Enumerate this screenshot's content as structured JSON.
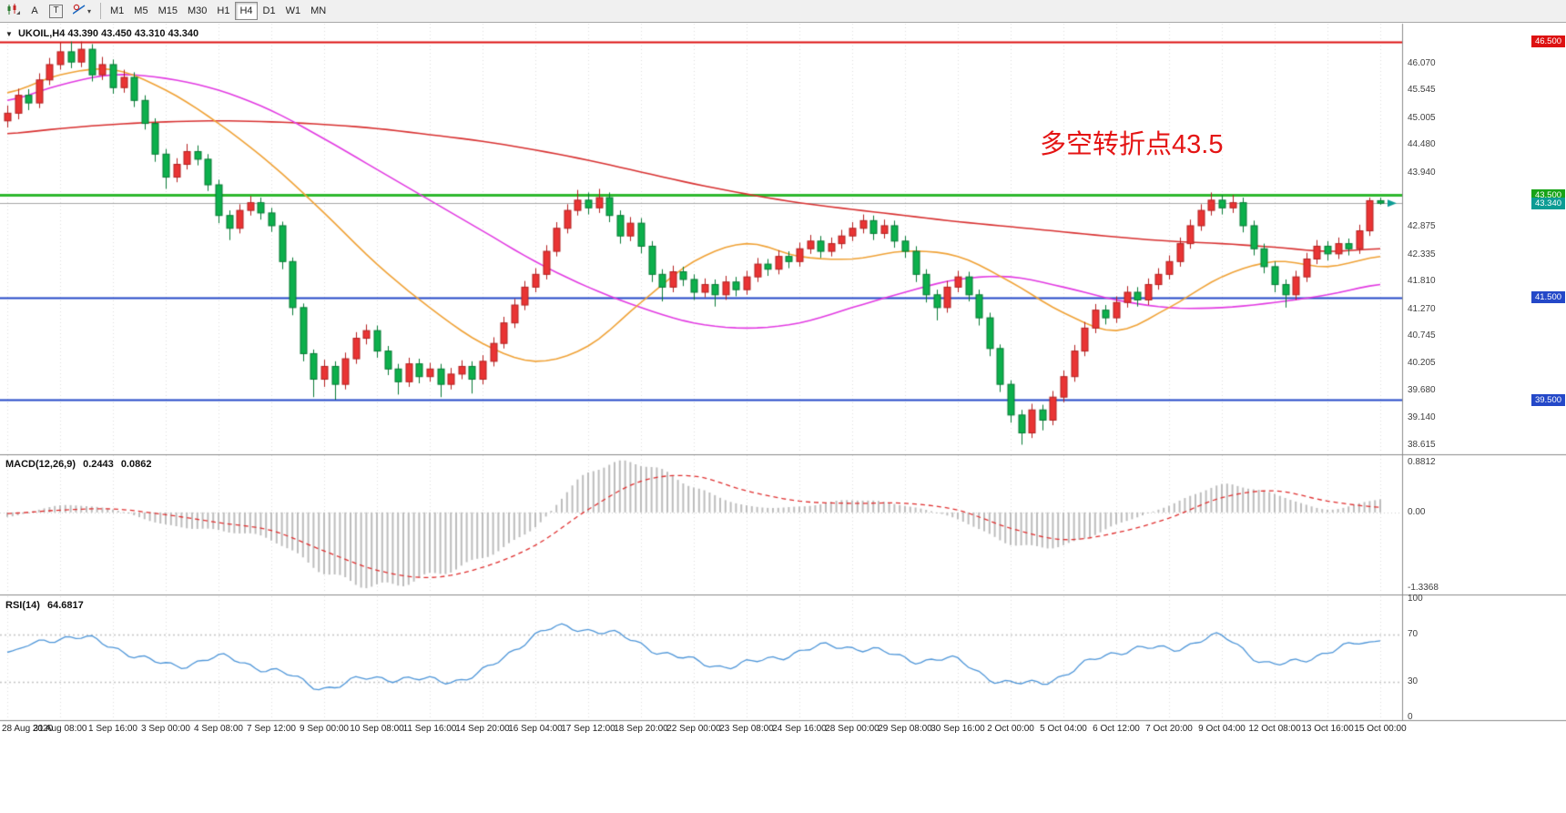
{
  "toolbar": {
    "tools": {
      "annotate": "A",
      "text": "T"
    },
    "icons": {
      "chevron_down": "▾"
    },
    "timeframes": [
      "M1",
      "M5",
      "M15",
      "M30",
      "H1",
      "H4",
      "D1",
      "W1",
      "MN"
    ],
    "active_timeframe": "H4"
  },
  "main_panel": {
    "title_marker": "▼",
    "symbol": "UKOIL,H4",
    "ohlc_text": "43.390 43.450 43.310 43.340",
    "annotation": "多空转折点43.5",
    "price_gridline_labels": [
      "46.070",
      "45.545",
      "45.005",
      "44.480",
      "43.940",
      "42.875",
      "42.335",
      "41.810",
      "41.270",
      "40.745",
      "40.205",
      "39.680",
      "39.140",
      "38.615"
    ]
  },
  "macd_panel": {
    "label": "MACD(12,26,9)",
    "value_main": "0.2443",
    "value_signal": "0.0862",
    "axis_labels": [
      "0.8812",
      "0.00",
      "-1.3368"
    ]
  },
  "rsi_panel": {
    "label": "RSI(14)",
    "value": "64.6817",
    "axis_labels": [
      "100",
      "70",
      "30",
      "0"
    ]
  },
  "chart_data": {
    "type": "candlestick",
    "symbol": "UKOIL",
    "timeframe": "H4",
    "current_quote": {
      "open": 43.39,
      "high": 43.45,
      "low": 43.31,
      "close": 43.34
    },
    "y_axis": {
      "min": 38.615,
      "max": 46.5
    },
    "bars_per_label": 5,
    "x_labels": [
      "28 Aug 2020",
      "31 Aug 08:00",
      "1 Sep 16:00",
      "3 Sep 00:00",
      "4 Sep 08:00",
      "7 Sep 12:00",
      "9 Sep 00:00",
      "10 Sep 08:00",
      "11 Sep 16:00",
      "14 Sep 20:00",
      "16 Sep 04:00",
      "17 Sep 12:00",
      "18 Sep 20:00",
      "22 Sep 00:00",
      "23 Sep 08:00",
      "24 Sep 16:00",
      "28 Sep 00:00",
      "29 Sep 08:00",
      "30 Sep 16:00",
      "2 Oct 00:00",
      "5 Oct 04:00",
      "6 Oct 12:00",
      "7 Oct 20:00",
      "9 Oct 04:00",
      "12 Oct 08:00",
      "13 Oct 16:00",
      "15 Oct 00:00"
    ],
    "up_color": "#e93434",
    "down_color": "#0cb04c",
    "candles": [
      [
        44.95,
        45.25,
        44.82,
        45.1
      ],
      [
        45.1,
        45.58,
        44.98,
        45.45
      ],
      [
        45.45,
        45.57,
        45.16,
        45.3
      ],
      [
        45.3,
        45.88,
        45.2,
        45.75
      ],
      [
        45.75,
        46.18,
        45.65,
        46.05
      ],
      [
        46.05,
        46.48,
        45.95,
        46.3
      ],
      [
        46.3,
        46.5,
        45.98,
        46.1
      ],
      [
        46.1,
        46.5,
        46.0,
        46.35
      ],
      [
        46.35,
        46.45,
        45.72,
        45.85
      ],
      [
        45.85,
        46.2,
        45.75,
        46.05
      ],
      [
        46.05,
        46.15,
        45.48,
        45.6
      ],
      [
        45.6,
        45.95,
        45.5,
        45.8
      ],
      [
        45.8,
        45.9,
        45.22,
        45.35
      ],
      [
        45.35,
        45.45,
        44.78,
        44.9
      ],
      [
        44.9,
        45.0,
        44.15,
        44.3
      ],
      [
        44.3,
        44.4,
        43.62,
        43.85
      ],
      [
        43.85,
        44.22,
        43.75,
        44.1
      ],
      [
        44.1,
        44.5,
        44.0,
        44.35
      ],
      [
        44.35,
        44.47,
        44.08,
        44.2
      ],
      [
        44.2,
        44.3,
        43.58,
        43.7
      ],
      [
        43.7,
        43.8,
        42.95,
        43.1
      ],
      [
        43.1,
        43.2,
        42.62,
        42.85
      ],
      [
        42.85,
        43.32,
        42.75,
        43.2
      ],
      [
        43.2,
        43.48,
        43.1,
        43.35
      ],
      [
        43.35,
        43.45,
        43.02,
        43.15
      ],
      [
        43.15,
        43.25,
        42.78,
        42.9
      ],
      [
        42.9,
        42.98,
        42.05,
        42.2
      ],
      [
        42.2,
        42.28,
        41.15,
        41.3
      ],
      [
        41.3,
        41.38,
        40.25,
        40.4
      ],
      [
        40.4,
        40.48,
        39.55,
        39.9
      ],
      [
        39.9,
        40.28,
        39.75,
        40.15
      ],
      [
        40.15,
        40.25,
        39.5,
        39.8
      ],
      [
        39.8,
        40.42,
        39.7,
        40.3
      ],
      [
        40.3,
        40.82,
        40.2,
        40.7
      ],
      [
        40.7,
        40.97,
        40.58,
        40.85
      ],
      [
        40.85,
        40.95,
        40.32,
        40.45
      ],
      [
        40.45,
        40.55,
        39.98,
        40.1
      ],
      [
        40.1,
        40.2,
        39.6,
        39.85
      ],
      [
        39.85,
        40.32,
        39.75,
        40.2
      ],
      [
        40.2,
        40.3,
        39.82,
        39.95
      ],
      [
        39.95,
        40.22,
        39.85,
        40.1
      ],
      [
        40.1,
        40.2,
        39.55,
        39.8
      ],
      [
        39.8,
        40.12,
        39.7,
        40.0
      ],
      [
        40.0,
        40.27,
        39.9,
        40.15
      ],
      [
        40.15,
        40.25,
        39.62,
        39.9
      ],
      [
        39.9,
        40.37,
        39.8,
        40.25
      ],
      [
        40.25,
        40.72,
        40.15,
        40.6
      ],
      [
        40.6,
        41.12,
        40.5,
        41.0
      ],
      [
        41.0,
        41.47,
        40.9,
        41.35
      ],
      [
        41.35,
        41.82,
        41.25,
        41.7
      ],
      [
        41.7,
        42.07,
        41.6,
        41.95
      ],
      [
        41.95,
        42.52,
        41.85,
        42.4
      ],
      [
        42.4,
        42.97,
        42.3,
        42.85
      ],
      [
        42.85,
        43.32,
        42.75,
        43.2
      ],
      [
        43.2,
        43.6,
        43.1,
        43.4
      ],
      [
        43.4,
        43.55,
        43.12,
        43.25
      ],
      [
        43.25,
        43.62,
        43.15,
        43.45
      ],
      [
        43.45,
        43.55,
        42.97,
        43.1
      ],
      [
        43.1,
        43.2,
        42.55,
        42.7
      ],
      [
        42.7,
        43.07,
        42.6,
        42.95
      ],
      [
        42.95,
        43.05,
        42.36,
        42.5
      ],
      [
        42.5,
        42.6,
        41.8,
        41.95
      ],
      [
        41.95,
        42.05,
        41.42,
        41.7
      ],
      [
        41.7,
        42.12,
        41.6,
        42.0
      ],
      [
        42.0,
        42.1,
        41.72,
        41.85
      ],
      [
        41.85,
        41.95,
        41.45,
        41.6
      ],
      [
        41.6,
        41.87,
        41.5,
        41.75
      ],
      [
        41.75,
        41.85,
        41.32,
        41.55
      ],
      [
        41.55,
        41.92,
        41.45,
        41.8
      ],
      [
        41.8,
        41.9,
        41.52,
        41.65
      ],
      [
        41.65,
        42.02,
        41.55,
        41.9
      ],
      [
        41.9,
        42.27,
        41.8,
        42.15
      ],
      [
        42.15,
        42.25,
        41.92,
        42.05
      ],
      [
        42.05,
        42.42,
        41.95,
        42.3
      ],
      [
        42.3,
        42.4,
        42.07,
        42.2
      ],
      [
        42.2,
        42.57,
        42.1,
        42.45
      ],
      [
        42.45,
        42.72,
        42.35,
        42.6
      ],
      [
        42.6,
        42.7,
        42.27,
        42.4
      ],
      [
        42.4,
        42.67,
        42.3,
        42.55
      ],
      [
        42.55,
        42.82,
        42.45,
        42.7
      ],
      [
        42.7,
        42.97,
        42.6,
        42.85
      ],
      [
        42.85,
        43.12,
        42.75,
        43.0
      ],
      [
        43.0,
        43.1,
        42.62,
        42.75
      ],
      [
        42.75,
        43.02,
        42.65,
        42.9
      ],
      [
        42.9,
        43.0,
        42.47,
        42.6
      ],
      [
        42.6,
        42.7,
        42.27,
        42.4
      ],
      [
        42.4,
        42.5,
        41.8,
        41.95
      ],
      [
        41.95,
        42.05,
        41.4,
        41.55
      ],
      [
        41.55,
        41.65,
        41.05,
        41.3
      ],
      [
        41.3,
        41.82,
        41.2,
        41.7
      ],
      [
        41.7,
        42.02,
        41.6,
        41.9
      ],
      [
        41.9,
        42.0,
        41.42,
        41.55
      ],
      [
        41.55,
        41.65,
        40.95,
        41.1
      ],
      [
        41.1,
        41.2,
        40.35,
        40.5
      ],
      [
        40.5,
        40.58,
        39.65,
        39.8
      ],
      [
        39.8,
        39.88,
        39.05,
        39.2
      ],
      [
        39.2,
        39.3,
        38.62,
        38.85
      ],
      [
        38.85,
        39.42,
        38.75,
        39.3
      ],
      [
        39.3,
        39.4,
        38.9,
        39.1
      ],
      [
        39.1,
        39.67,
        39.0,
        39.55
      ],
      [
        39.55,
        40.07,
        39.45,
        39.95
      ],
      [
        39.95,
        40.57,
        39.85,
        40.45
      ],
      [
        40.45,
        41.02,
        40.35,
        40.9
      ],
      [
        40.9,
        41.37,
        40.8,
        41.25
      ],
      [
        41.25,
        41.35,
        40.97,
        41.1
      ],
      [
        41.1,
        41.52,
        41.0,
        41.4
      ],
      [
        41.4,
        41.72,
        41.3,
        41.6
      ],
      [
        41.6,
        41.7,
        41.32,
        41.45
      ],
      [
        41.45,
        41.87,
        41.35,
        41.75
      ],
      [
        41.75,
        42.07,
        41.65,
        41.95
      ],
      [
        41.95,
        42.32,
        41.85,
        42.2
      ],
      [
        42.2,
        42.67,
        42.1,
        42.55
      ],
      [
        42.55,
        43.02,
        42.45,
        42.9
      ],
      [
        42.9,
        43.32,
        42.8,
        43.2
      ],
      [
        43.2,
        43.55,
        43.1,
        43.4
      ],
      [
        43.4,
        43.5,
        43.12,
        43.25
      ],
      [
        43.25,
        43.5,
        43.15,
        43.35
      ],
      [
        43.35,
        43.45,
        42.77,
        42.9
      ],
      [
        42.9,
        43.0,
        42.32,
        42.45
      ],
      [
        42.45,
        42.55,
        41.97,
        42.1
      ],
      [
        42.1,
        42.2,
        41.6,
        41.75
      ],
      [
        41.75,
        41.85,
        41.3,
        41.55
      ],
      [
        41.55,
        42.02,
        41.45,
        41.9
      ],
      [
        41.9,
        42.37,
        41.8,
        42.25
      ],
      [
        42.25,
        42.62,
        42.15,
        42.5
      ],
      [
        42.5,
        42.6,
        42.22,
        42.35
      ],
      [
        42.35,
        42.67,
        42.25,
        42.55
      ],
      [
        42.55,
        42.65,
        42.32,
        42.45
      ],
      [
        42.45,
        42.92,
        42.35,
        42.8
      ],
      [
        42.8,
        43.45,
        42.7,
        43.39
      ],
      [
        43.39,
        43.45,
        43.31,
        43.34
      ]
    ],
    "horizontal_lines": [
      {
        "price": 46.5,
        "label": "46.500",
        "line_color": "#dd1111",
        "line_width": 2,
        "tag_bg": "#dd1111"
      },
      {
        "price": 43.5,
        "label": "43.500",
        "line_color": "#2eb82e",
        "line_width": 3,
        "tag_bg": "#17a317"
      },
      {
        "price": 43.34,
        "label": "43.340",
        "line_color": "#a6a6a6",
        "line_width": 1,
        "tag_bg": "#0c9c94"
      },
      {
        "price": 41.5,
        "label": "41.500",
        "line_color": "#2448c8",
        "line_width": 2,
        "tag_bg": "#2448c8"
      },
      {
        "price": 39.5,
        "label": "39.500",
        "line_color": "#2448c8",
        "line_width": 2,
        "tag_bg": "#2448c8"
      }
    ],
    "moving_averages": [
      {
        "name": "ma-slow-red",
        "color": "#d83030",
        "keyframes": [
          44.7,
          44.8,
          44.88,
          44.93,
          44.95,
          44.93,
          44.88,
          44.8,
          44.68,
          44.55,
          44.38,
          44.18,
          43.95,
          43.72,
          43.52,
          43.35,
          43.22,
          43.1,
          42.98,
          42.88,
          42.78,
          42.68,
          42.6,
          42.55,
          42.48,
          42.4,
          42.45
        ]
      },
      {
        "name": "ma-medium-magenta",
        "color": "#e23ae2",
        "keyframes": [
          45.35,
          45.65,
          45.85,
          45.78,
          45.55,
          45.15,
          44.6,
          44.0,
          43.4,
          42.8,
          42.2,
          41.7,
          41.3,
          41.0,
          40.9,
          41.0,
          41.3,
          41.6,
          41.85,
          41.9,
          41.7,
          41.45,
          41.3,
          41.3,
          41.4,
          41.55,
          41.75
        ]
      },
      {
        "name": "ma-fast-orange",
        "color": "#f0a236",
        "keyframes": [
          45.5,
          45.85,
          45.95,
          45.55,
          44.9,
          44.1,
          43.15,
          42.15,
          41.3,
          40.6,
          40.25,
          40.55,
          41.4,
          42.2,
          42.55,
          42.3,
          42.25,
          42.4,
          42.3,
          41.8,
          41.2,
          40.85,
          41.3,
          41.9,
          42.2,
          42.1,
          42.3
        ]
      }
    ],
    "macd": {
      "params": "12,26,9",
      "histogram_color": "#bdbdbd",
      "signal_color": "#e03030",
      "axis_max": 0.8812,
      "axis_min": -1.3368,
      "current_histogram": 0.2443,
      "current_signal": 0.0862,
      "histogram_keyframes": [
        -0.08,
        0.12,
        0.05,
        -0.22,
        -0.32,
        -0.48,
        -1.05,
        -1.3,
        -1.12,
        -0.8,
        -0.25,
        0.7,
        0.86,
        0.45,
        0.12,
        0.1,
        0.22,
        0.12,
        -0.12,
        -0.55,
        -0.58,
        -0.22,
        0.12,
        0.48,
        0.32,
        0.05,
        0.24
      ],
      "signal_keyframes": [
        -0.02,
        0.04,
        0.06,
        -0.04,
        -0.18,
        -0.32,
        -0.68,
        -1.02,
        -1.15,
        -0.97,
        -0.58,
        0.05,
        0.55,
        0.64,
        0.38,
        0.2,
        0.16,
        0.16,
        0.04,
        -0.28,
        -0.48,
        -0.36,
        -0.1,
        0.26,
        0.38,
        0.2,
        0.09
      ]
    },
    "rsi": {
      "period": 14,
      "color": "#4e96d9",
      "levels": [
        70,
        30
      ],
      "current": 64.6817,
      "keyframes": [
        55,
        68,
        60,
        44,
        50,
        40,
        26,
        34,
        31,
        38,
        70,
        75,
        62,
        47,
        45,
        56,
        60,
        50,
        47,
        28,
        36,
        56,
        58,
        67,
        44,
        56,
        64.7
      ]
    }
  }
}
